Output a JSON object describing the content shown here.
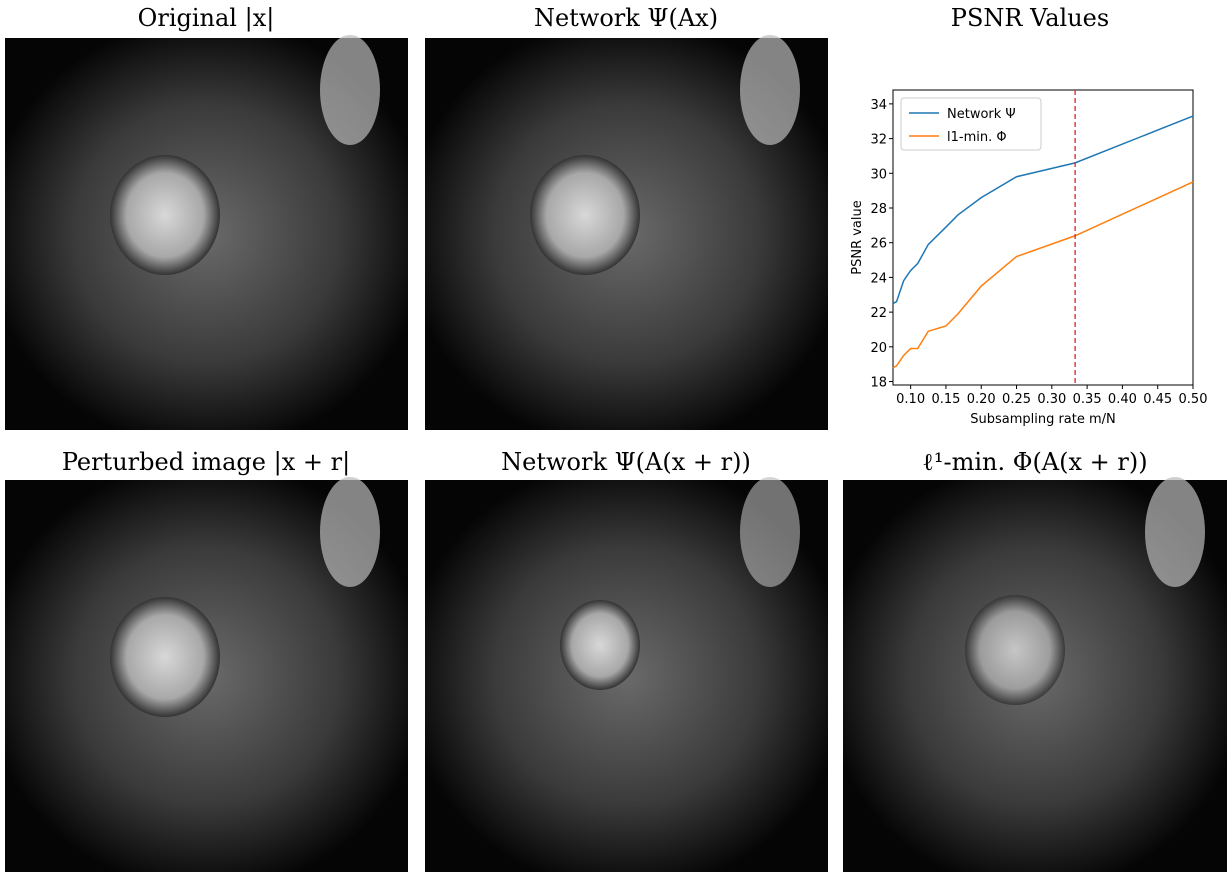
{
  "panels": [
    {
      "title": "Original |x|"
    },
    {
      "title": "Network Ψ(Ax)"
    },
    {
      "title": "Perturbed image |x + r|"
    },
    {
      "title": "Network Ψ(A(x + r))"
    },
    {
      "title": "ℓ¹-min. Φ(A(x + r))"
    }
  ],
  "chart_data": {
    "type": "line",
    "title": "PSNR Values",
    "x_label": "Subsampling rate m/N",
    "y_label": "PSNR value",
    "x": [
      0.075,
      0.08,
      0.09,
      0.1,
      0.11,
      0.125,
      0.15,
      0.167,
      0.2,
      0.25,
      0.333,
      0.5
    ],
    "series": [
      {
        "name": "Network Ψ",
        "color": "#1f77b4",
        "values": [
          22.5,
          22.6,
          23.8,
          24.4,
          24.8,
          25.9,
          26.9,
          27.6,
          28.6,
          29.8,
          30.6,
          33.3
        ]
      },
      {
        "name": "l1-min. Φ",
        "color": "#ff7f0e",
        "values": [
          18.8,
          18.9,
          19.5,
          19.9,
          19.9,
          20.9,
          21.2,
          21.9,
          23.5,
          25.2,
          26.4,
          29.5
        ]
      }
    ],
    "vline": 0.333,
    "vline_color": "#d62728",
    "xlim": [
      0.075,
      0.5
    ],
    "xticks": [
      {
        "value": 0.1,
        "label": "0.10"
      },
      0.15,
      {
        "value": 0.2,
        "label": "0.20"
      },
      0.25,
      {
        "value": 0.3,
        "label": "0.30"
      },
      0.35,
      {
        "value": 0.4,
        "label": "0.40"
      },
      0.45,
      {
        "value": 0.5,
        "label": "0.50"
      }
    ],
    "ylim": [
      17.8,
      34.8
    ],
    "yticks": [
      18,
      20,
      22,
      24,
      26,
      28,
      30,
      32,
      34
    ],
    "legend": "upper left"
  }
}
